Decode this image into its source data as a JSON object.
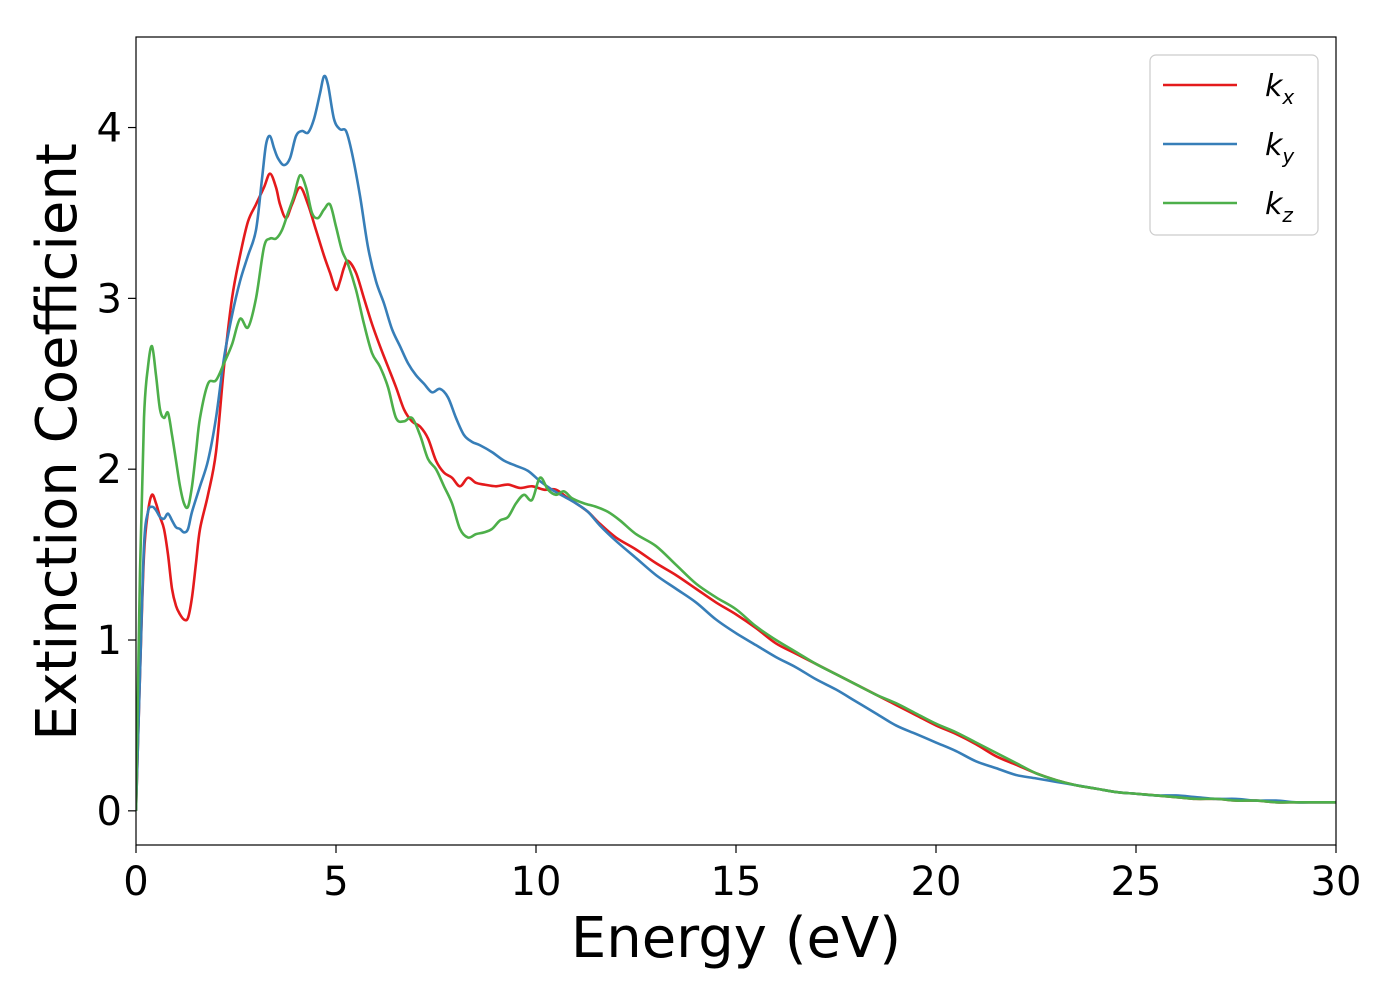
{
  "chart_data": {
    "type": "line",
    "xlabel": "Energy (eV)",
    "ylabel": "Extinction Coefficient",
    "xlim": [
      0,
      30
    ],
    "ylim": [
      -0.2,
      4.53
    ],
    "xticks": [
      0,
      5,
      10,
      15,
      20,
      25,
      30
    ],
    "yticks": [
      0,
      1,
      2,
      3,
      4
    ],
    "grid": false,
    "legend_position": "top-right",
    "series": [
      {
        "name": "k",
        "subscript": "x",
        "color": "#e41a1c",
        "x": [
          0,
          0.1,
          0.2,
          0.3,
          0.4,
          0.5,
          0.6,
          0.7,
          0.8,
          0.9,
          1.0,
          1.1,
          1.2,
          1.3,
          1.4,
          1.5,
          1.6,
          1.8,
          2.0,
          2.2,
          2.4,
          2.6,
          2.8,
          3.0,
          3.2,
          3.35,
          3.5,
          3.6,
          3.75,
          3.9,
          4.1,
          4.3,
          4.5,
          4.7,
          4.85,
          5.0,
          5.1,
          5.2,
          5.3,
          5.5,
          5.7,
          5.9,
          6.1,
          6.3,
          6.5,
          6.7,
          6.9,
          7.1,
          7.3,
          7.5,
          7.7,
          7.9,
          8.1,
          8.3,
          8.5,
          8.7,
          9.0,
          9.3,
          9.6,
          9.9,
          10.2,
          10.5,
          10.8,
          11.0,
          11.3,
          11.6,
          12.0,
          12.5,
          13.0,
          13.5,
          14.0,
          14.5,
          15.0,
          15.5,
          16.0,
          16.5,
          17.0,
          17.5,
          18.0,
          18.5,
          19.0,
          19.5,
          20.0,
          20.5,
          21.0,
          21.5,
          22.0,
          22.5,
          23.0,
          23.5,
          24.0,
          24.5,
          25.0,
          25.5,
          26.0,
          26.5,
          27.0,
          27.5,
          28.0,
          28.5,
          29.0,
          29.5,
          30.0
        ],
        "y": [
          0,
          0.8,
          1.5,
          1.75,
          1.85,
          1.8,
          1.72,
          1.65,
          1.5,
          1.3,
          1.2,
          1.15,
          1.12,
          1.13,
          1.25,
          1.45,
          1.65,
          1.85,
          2.1,
          2.6,
          3.0,
          3.25,
          3.45,
          3.55,
          3.65,
          3.73,
          3.65,
          3.55,
          3.47,
          3.55,
          3.65,
          3.55,
          3.4,
          3.25,
          3.15,
          3.05,
          3.1,
          3.18,
          3.22,
          3.15,
          3.0,
          2.85,
          2.72,
          2.6,
          2.48,
          2.35,
          2.28,
          2.25,
          2.18,
          2.05,
          1.98,
          1.95,
          1.9,
          1.95,
          1.92,
          1.91,
          1.9,
          1.91,
          1.89,
          1.9,
          1.88,
          1.88,
          1.83,
          1.8,
          1.75,
          1.68,
          1.6,
          1.53,
          1.45,
          1.38,
          1.3,
          1.22,
          1.15,
          1.07,
          0.98,
          0.92,
          0.86,
          0.8,
          0.74,
          0.68,
          0.62,
          0.56,
          0.5,
          0.45,
          0.39,
          0.32,
          0.27,
          0.22,
          0.18,
          0.15,
          0.13,
          0.11,
          0.1,
          0.09,
          0.08,
          0.07,
          0.07,
          0.06,
          0.06,
          0.05,
          0.05,
          0.05,
          0.05
        ]
      },
      {
        "name": "k",
        "subscript": "y",
        "color": "#377eb8",
        "x": [
          0,
          0.1,
          0.2,
          0.3,
          0.4,
          0.5,
          0.6,
          0.7,
          0.8,
          0.9,
          1.0,
          1.1,
          1.2,
          1.3,
          1.4,
          1.6,
          1.8,
          2.0,
          2.2,
          2.4,
          2.6,
          2.8,
          3.0,
          3.15,
          3.25,
          3.35,
          3.45,
          3.55,
          3.7,
          3.85,
          4.0,
          4.15,
          4.3,
          4.45,
          4.6,
          4.7,
          4.8,
          4.95,
          5.1,
          5.25,
          5.4,
          5.6,
          5.8,
          6.0,
          6.2,
          6.4,
          6.6,
          6.8,
          7.0,
          7.2,
          7.4,
          7.6,
          7.8,
          8.0,
          8.2,
          8.4,
          8.6,
          8.9,
          9.2,
          9.5,
          9.8,
          10.1,
          10.4,
          10.7,
          11.0,
          11.3,
          11.6,
          12.0,
          12.5,
          13.0,
          13.5,
          14.0,
          14.5,
          15.0,
          15.5,
          16.0,
          16.5,
          17.0,
          17.5,
          18.0,
          18.5,
          19.0,
          19.5,
          20.0,
          20.5,
          21.0,
          21.5,
          22.0,
          22.5,
          23.0,
          23.5,
          24.0,
          24.5,
          25.0,
          25.5,
          26.0,
          26.5,
          27.0,
          27.5,
          28.0,
          28.5,
          29.0,
          29.5,
          30.0
        ],
        "y": [
          0,
          0.8,
          1.55,
          1.75,
          1.78,
          1.76,
          1.72,
          1.71,
          1.74,
          1.7,
          1.66,
          1.65,
          1.63,
          1.65,
          1.75,
          1.9,
          2.05,
          2.3,
          2.65,
          2.9,
          3.1,
          3.25,
          3.4,
          3.7,
          3.9,
          3.95,
          3.88,
          3.82,
          3.78,
          3.82,
          3.95,
          3.98,
          3.97,
          4.05,
          4.2,
          4.3,
          4.25,
          4.05,
          3.99,
          3.98,
          3.85,
          3.6,
          3.3,
          3.1,
          2.97,
          2.82,
          2.72,
          2.62,
          2.55,
          2.5,
          2.45,
          2.47,
          2.42,
          2.3,
          2.2,
          2.16,
          2.14,
          2.1,
          2.05,
          2.02,
          1.99,
          1.93,
          1.88,
          1.84,
          1.8,
          1.75,
          1.67,
          1.58,
          1.48,
          1.38,
          1.3,
          1.22,
          1.12,
          1.04,
          0.97,
          0.9,
          0.84,
          0.77,
          0.71,
          0.64,
          0.57,
          0.5,
          0.45,
          0.4,
          0.35,
          0.29,
          0.25,
          0.21,
          0.19,
          0.17,
          0.15,
          0.13,
          0.11,
          0.1,
          0.09,
          0.09,
          0.08,
          0.07,
          0.07,
          0.06,
          0.06,
          0.05,
          0.05,
          0.05
        ]
      },
      {
        "name": "k",
        "subscript": "z",
        "color": "#4daf4a",
        "x": [
          0,
          0.1,
          0.2,
          0.3,
          0.4,
          0.5,
          0.6,
          0.7,
          0.8,
          0.9,
          1.0,
          1.1,
          1.2,
          1.3,
          1.4,
          1.5,
          1.6,
          1.8,
          2.0,
          2.2,
          2.4,
          2.6,
          2.8,
          3.0,
          3.2,
          3.35,
          3.5,
          3.65,
          3.8,
          3.95,
          4.1,
          4.25,
          4.4,
          4.55,
          4.7,
          4.85,
          5.0,
          5.15,
          5.3,
          5.5,
          5.7,
          5.9,
          6.1,
          6.3,
          6.5,
          6.7,
          6.9,
          7.1,
          7.3,
          7.5,
          7.7,
          7.9,
          8.1,
          8.3,
          8.5,
          8.7,
          8.9,
          9.1,
          9.3,
          9.5,
          9.7,
          9.9,
          10.1,
          10.3,
          10.5,
          10.7,
          10.9,
          11.2,
          11.5,
          11.8,
          12.1,
          12.5,
          13.0,
          13.5,
          14.0,
          14.5,
          15.0,
          15.5,
          16.0,
          16.5,
          17.0,
          17.5,
          18.0,
          18.5,
          19.0,
          19.5,
          20.0,
          20.5,
          21.0,
          21.5,
          22.0,
          22.5,
          23.0,
          23.5,
          24.0,
          24.5,
          25.0,
          25.5,
          26.0,
          26.5,
          27.0,
          27.5,
          28.0,
          28.5,
          29.0,
          29.5,
          30.0
        ],
        "y": [
          0,
          1.4,
          2.3,
          2.6,
          2.72,
          2.55,
          2.35,
          2.3,
          2.33,
          2.2,
          2.05,
          1.9,
          1.8,
          1.78,
          1.9,
          2.1,
          2.3,
          2.5,
          2.52,
          2.62,
          2.73,
          2.88,
          2.83,
          3.0,
          3.3,
          3.35,
          3.35,
          3.4,
          3.5,
          3.6,
          3.72,
          3.65,
          3.5,
          3.47,
          3.52,
          3.55,
          3.42,
          3.28,
          3.2,
          3.05,
          2.85,
          2.68,
          2.6,
          2.48,
          2.3,
          2.28,
          2.3,
          2.2,
          2.06,
          2.0,
          1.9,
          1.8,
          1.65,
          1.6,
          1.62,
          1.63,
          1.65,
          1.7,
          1.72,
          1.8,
          1.85,
          1.82,
          1.95,
          1.88,
          1.85,
          1.87,
          1.83,
          1.8,
          1.78,
          1.75,
          1.7,
          1.62,
          1.55,
          1.44,
          1.33,
          1.25,
          1.18,
          1.08,
          1.0,
          0.93,
          0.86,
          0.8,
          0.74,
          0.68,
          0.63,
          0.57,
          0.51,
          0.46,
          0.4,
          0.34,
          0.28,
          0.22,
          0.18,
          0.15,
          0.13,
          0.11,
          0.1,
          0.09,
          0.08,
          0.07,
          0.07,
          0.06,
          0.06,
          0.05,
          0.05,
          0.05,
          0.05
        ]
      }
    ]
  }
}
